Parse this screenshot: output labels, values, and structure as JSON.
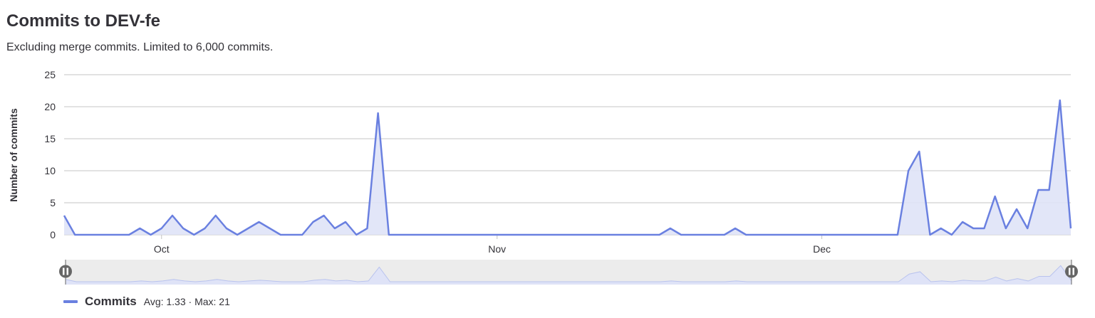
{
  "header": {
    "title": "Commits to DEV-fe",
    "subtitle": "Excluding merge commits. Limited to 6,000 commits."
  },
  "legend": {
    "series_name": "Commits",
    "stats": "Avg: 1.33 · Max: 21"
  },
  "colors": {
    "line": "#6a80e0",
    "area": "#dfe3f7",
    "grid": "#c4c4c4",
    "slider_bg": "#ececec",
    "handle": "#666666"
  },
  "chart_data": {
    "type": "area",
    "title": "Commits to DEV-fe",
    "subtitle": "Excluding merge commits. Limited to 6,000 commits.",
    "xlabel": "",
    "ylabel": "Number of commits",
    "x_start": "2024-09-22",
    "x_ticks": [
      {
        "label": "Oct",
        "date": "2024-10-01"
      },
      {
        "label": "Nov",
        "date": "2024-11-01"
      },
      {
        "label": "Dec",
        "date": "2024-12-01"
      }
    ],
    "y_ticks": [
      0,
      5,
      10,
      15,
      20,
      25
    ],
    "ylim": [
      0,
      25
    ],
    "grid": true,
    "legend_position": "bottom-left",
    "data_zoom": true,
    "series": [
      {
        "name": "Commits",
        "values": [
          3,
          0,
          0,
          0,
          0,
          0,
          0,
          1,
          0,
          1,
          3,
          1,
          0,
          1,
          3,
          1,
          0,
          1,
          2,
          1,
          0,
          0,
          0,
          2,
          3,
          1,
          2,
          0,
          1,
          19,
          0,
          0,
          0,
          0,
          0,
          0,
          0,
          0,
          0,
          0,
          0,
          0,
          0,
          0,
          0,
          0,
          0,
          0,
          0,
          0,
          0,
          0,
          0,
          0,
          0,
          0,
          1,
          0,
          0,
          0,
          0,
          0,
          1,
          0,
          0,
          0,
          0,
          0,
          0,
          0,
          0,
          0,
          0,
          0,
          0,
          0,
          0,
          0,
          10,
          13,
          0,
          1,
          0,
          2,
          1,
          1,
          6,
          1,
          4,
          1,
          7,
          7,
          21,
          1
        ]
      }
    ]
  }
}
